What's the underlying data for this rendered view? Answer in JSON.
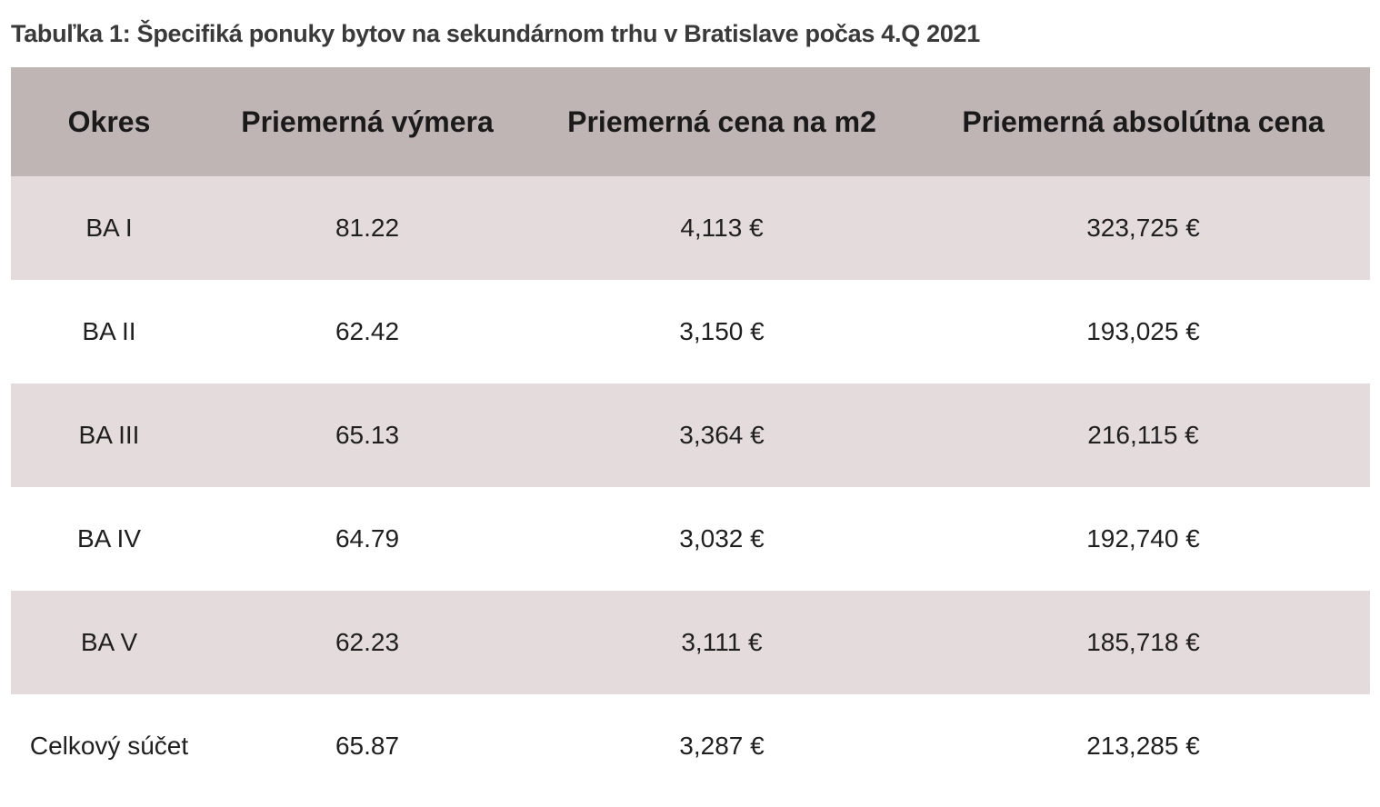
{
  "caption": "Tabuľka 1: Špecifiká ponuky bytov na sekundárnom trhu v Bratislave počas 4.Q 2021",
  "colors": {
    "header_bg": "#bfb5b5",
    "shaded_row_bg": "#e4dbdc",
    "plain_row_bg": "#ffffff"
  },
  "table": {
    "headers": [
      "Okres",
      "Priemerná výmera",
      "Priemerná cena na m2",
      "Priemerná absolútna cena"
    ],
    "rows": [
      [
        "BA I",
        "81.22",
        "4,113 €",
        "323,725 €"
      ],
      [
        "BA II",
        "62.42",
        "3,150 €",
        "193,025 €"
      ],
      [
        "BA III",
        "65.13",
        "3,364 €",
        "216,115 €"
      ],
      [
        "BA IV",
        "64.79",
        "3,032 €",
        "192,740 €"
      ],
      [
        "BA V",
        "62.23",
        "3,111 €",
        "185,718 €"
      ],
      [
        "Celkový súčet",
        "65.87",
        "3,287 €",
        "213,285 €"
      ]
    ]
  }
}
